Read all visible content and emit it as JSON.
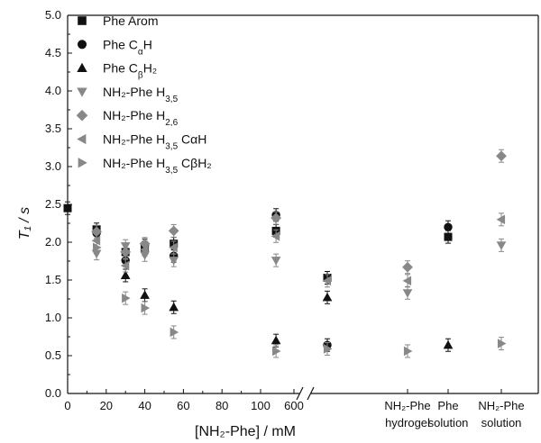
{
  "chart_data": {
    "type": "scatter",
    "ylabel": "T₁ / s",
    "xlabel": "[NH₂-Phe] / mM",
    "ylim": [
      0,
      5
    ],
    "y_ticks": [
      "0.0",
      "0.5",
      "1.0",
      "1.5",
      "2.0",
      "2.5",
      "3.0",
      "3.5",
      "4.0",
      "4.5",
      "5.0"
    ],
    "x_ticks": [
      "0",
      "20",
      "40",
      "60",
      "80",
      "100",
      "600"
    ],
    "x_axis_break": "between 100 and 600",
    "categories": [
      {
        "line1": "NH₂-Phe",
        "line2": "hydrogel"
      },
      {
        "line1": "Phe",
        "line2": "solution"
      },
      {
        "line1": "NH₂-Phe",
        "line2": "solution"
      }
    ],
    "legend_position": "top-left",
    "series": [
      {
        "name": "Phe Arom",
        "name_sub": "",
        "name_suffix": "",
        "marker": "square",
        "color": "#111111",
        "points": [
          [
            0,
            2.45
          ],
          [
            15,
            2.17
          ],
          [
            30,
            1.87
          ],
          [
            40,
            1.93
          ],
          [
            55,
            1.98
          ],
          [
            108,
            2.15
          ],
          [
            700,
            1.53
          ],
          [
            "Phe solution",
            2.07
          ]
        ]
      },
      {
        "name": "Phe C",
        "name_sub": "α",
        "name_suffix": "H",
        "marker": "circle",
        "color": "#111111",
        "points": [
          [
            15,
            2.12
          ],
          [
            30,
            1.76
          ],
          [
            40,
            1.96
          ],
          [
            55,
            1.82
          ],
          [
            108,
            2.36
          ],
          [
            700,
            0.64
          ],
          [
            "Phe solution",
            2.2
          ]
        ]
      },
      {
        "name": "Phe C",
        "name_sub": "β",
        "name_suffix": "H₂",
        "marker": "triangle-up",
        "color": "#111111",
        "points": [
          [
            30,
            1.56
          ],
          [
            40,
            1.3
          ],
          [
            55,
            1.14
          ],
          [
            108,
            0.7
          ],
          [
            700,
            1.27
          ],
          [
            "Phe solution",
            0.64
          ]
        ]
      },
      {
        "name": "NH₂-Phe H",
        "name_sub": "3,5",
        "name_suffix": "",
        "marker": "triangle-down",
        "color": "#888888",
        "points": [
          [
            15,
            1.85
          ],
          [
            30,
            1.95
          ],
          [
            40,
            1.83
          ],
          [
            55,
            1.76
          ],
          [
            108,
            1.76
          ],
          [
            "NH2-Phe hydrogel",
            1.33
          ],
          [
            "NH2-Phe solution",
            1.96
          ]
        ]
      },
      {
        "name": "NH₂-Phe H",
        "name_sub": "2,6",
        "name_suffix": "",
        "marker": "diamond",
        "color": "#888888",
        "points": [
          [
            15,
            2.14
          ],
          [
            30,
            1.87
          ],
          [
            40,
            1.98
          ],
          [
            55,
            2.15
          ],
          [
            108,
            2.32
          ],
          [
            "NH2-Phe hydrogel",
            1.67
          ],
          [
            "NH2-Phe solution",
            3.14
          ]
        ]
      },
      {
        "name": "NH₂-Phe H",
        "name_sub": "3,5",
        "name_suffix": " CαH",
        "marker": "triangle-left",
        "color": "#888888",
        "points": [
          [
            15,
            2.02
          ],
          [
            30,
            1.69
          ],
          [
            40,
            1.9
          ],
          [
            55,
            1.93
          ],
          [
            108,
            2.08
          ],
          [
            700,
            1.49
          ],
          [
            "NH2-Phe hydrogel",
            1.49
          ],
          [
            "NH2-Phe solution",
            2.3
          ]
        ]
      },
      {
        "name": "NH₂-Phe H",
        "name_sub": "3,5",
        "name_suffix": " CβH₂",
        "marker": "triangle-right",
        "color": "#888888",
        "points": [
          [
            15,
            1.93
          ],
          [
            30,
            1.26
          ],
          [
            40,
            1.13
          ],
          [
            55,
            0.81
          ],
          [
            108,
            0.56
          ],
          [
            700,
            0.59
          ],
          [
            "NH2-Phe hydrogel",
            0.56
          ],
          [
            "NH2-Phe solution",
            0.66
          ]
        ]
      }
    ]
  }
}
